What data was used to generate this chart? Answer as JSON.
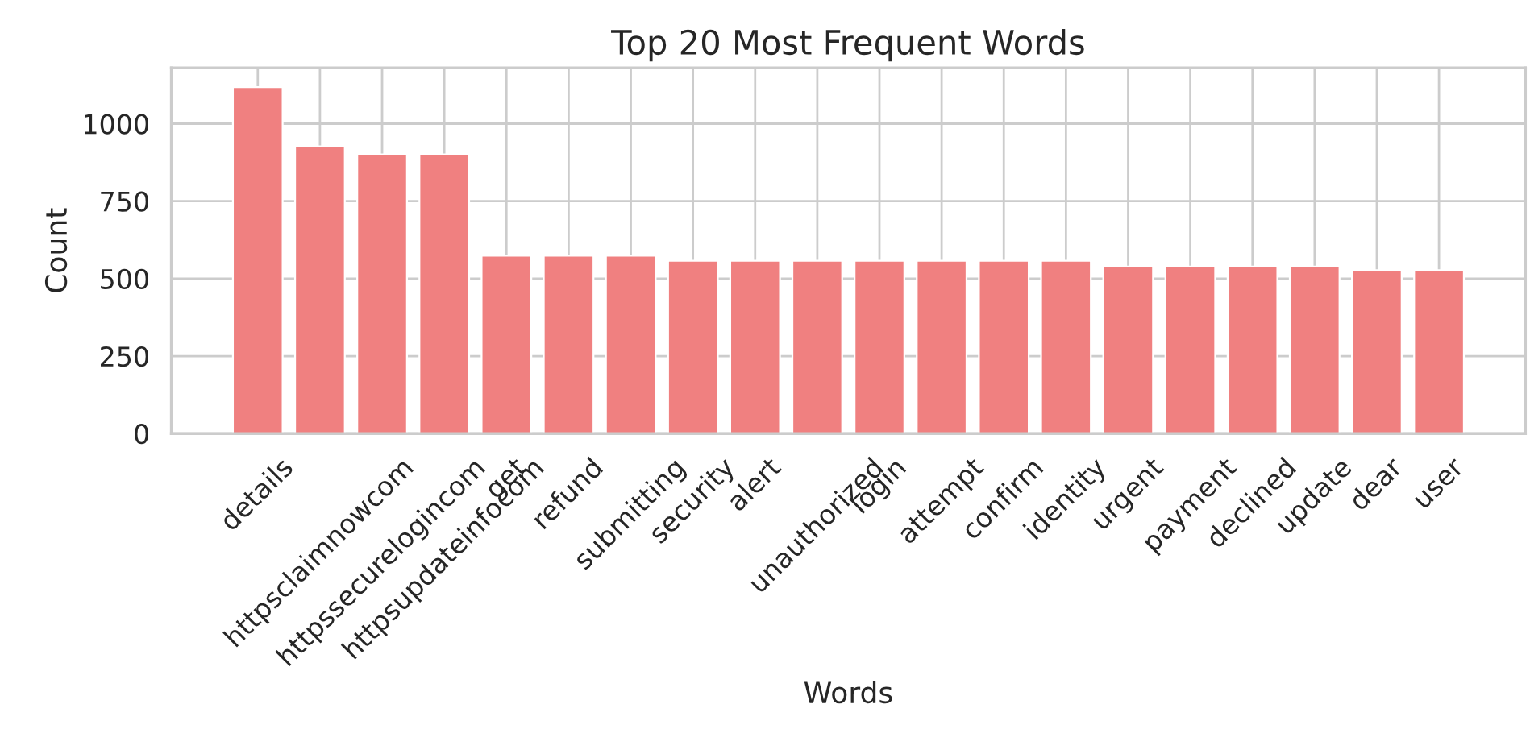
{
  "chart_data": {
    "type": "bar",
    "title": "Top 20 Most Frequent Words",
    "xlabel": "Words",
    "ylabel": "Count",
    "categories": [
      "details",
      "httpsclaimnowcom",
      "httpssecurelogincom",
      "httpsupdateinfocom",
      "get",
      "refund",
      "submitting",
      "security",
      "alert",
      "unauthorized",
      "login",
      "attempt",
      "confirm",
      "identity",
      "urgent",
      "payment",
      "declined",
      "update",
      "dear",
      "user"
    ],
    "values": [
      1118,
      927,
      901,
      901,
      574,
      574,
      574,
      558,
      558,
      558,
      558,
      558,
      558,
      558,
      539,
      539,
      539,
      539,
      527,
      527
    ],
    "color": "#f08080",
    "ylim": [
      0,
      1180
    ],
    "yticks": [
      0,
      250,
      500,
      750,
      1000
    ],
    "grid": true
  }
}
